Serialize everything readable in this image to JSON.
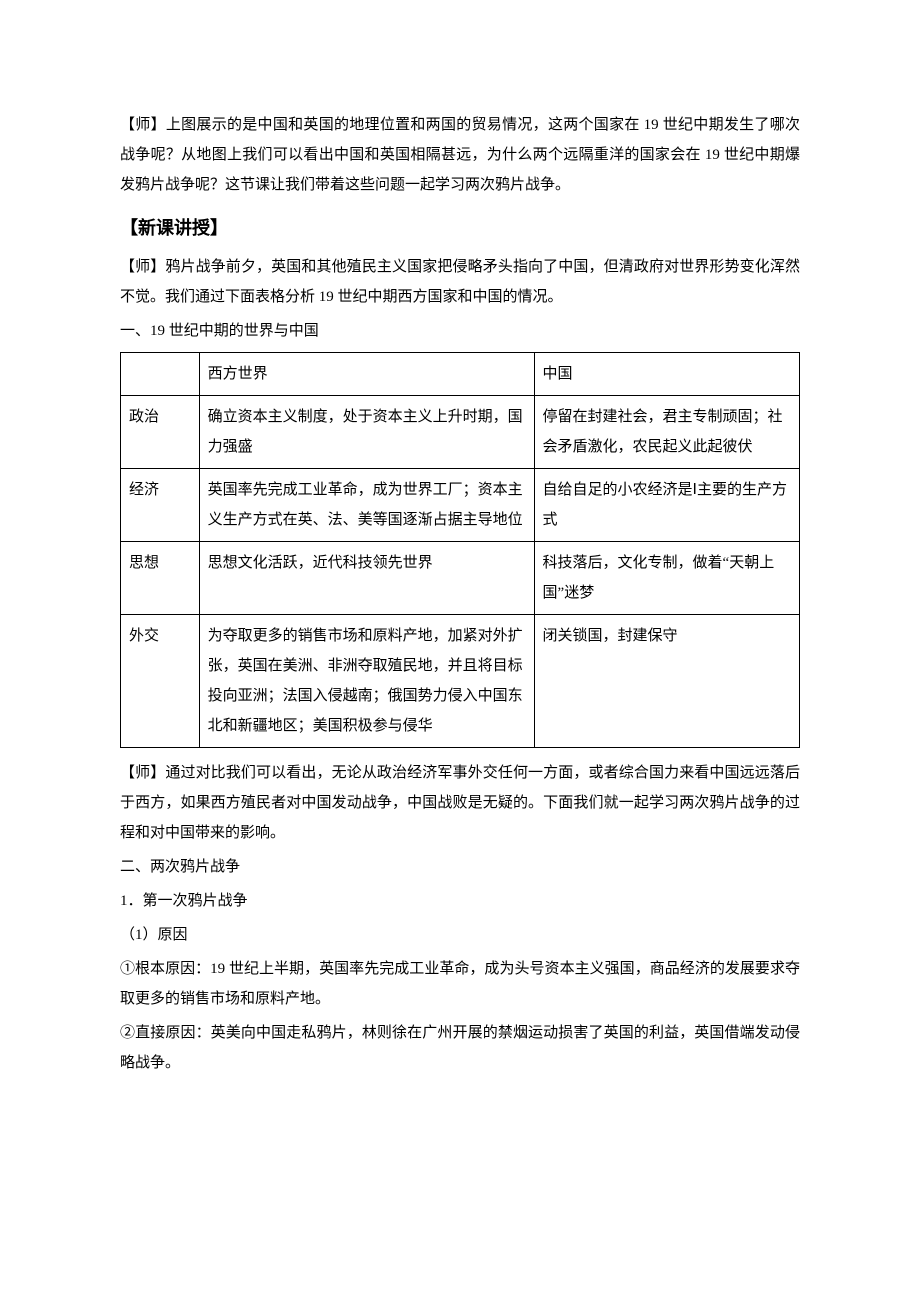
{
  "intro_para": "【师】上图展示的是中国和英国的地理位置和两国的贸易情况，这两个国家在 19 世纪中期发生了哪次战争呢？从地图上我们可以看出中国和英国相隔甚远，为什么两个远隔重洋的国家会在 19 世纪中期爆发鸦片战争呢？这节课让我们带着这些问题一起学习两次鸦片战争。",
  "section_heading": "【新课讲授】",
  "teacher_para_1": "【师】鸦片战争前夕，英国和其他殖民主义国家把侵略矛头指向了中国，但清政府对世界形势变化浑然不觉。我们通过下面表格分析 19 世纪中期西方国家和中国的情况。",
  "subheading_1": "一、19 世纪中期的世界与中国",
  "table": {
    "header": {
      "col_label": "",
      "west": "西方世界",
      "china": "中国"
    },
    "rows": [
      {
        "label": "政治",
        "west": "确立资本主义制度，处于资本主义上升时期，国力强盛",
        "china": "停留在封建社会，君主专制顽固；社会矛盾激化，农民起义此起彼伏"
      },
      {
        "label": "经济",
        "west": "英国率先完成工业革命，成为世界工厂；资本主义生产方式在英、法、美等国逐渐占据主导地位",
        "china": "自给自足的小农经济是Ⅰ主要的生产方式"
      },
      {
        "label": "思想",
        "west": "思想文化活跃，近代科技领先世界",
        "china": "科技落后，文化专制，做着“天朝上国”迷梦"
      },
      {
        "label": "外交",
        "west": "为夺取更多的销售市场和原料产地，加紧对外扩张，英国在美洲、非洲夺取殖民地，并且将目标投向亚洲；法国入侵越南；俄国势力侵入中国东北和新疆地区；美国积极参与侵华",
        "china": "闭关锁国，封建保守"
      }
    ]
  },
  "teacher_para_2": "【师】通过对比我们可以看出，无论从政治经济军事外交任何一方面，或者综合国力来看中国远远落后于西方，如果西方殖民者对中国发动战争，中国战败是无疑的。下面我们就一起学习两次鸦片战争的过程和对中国带来的影响。",
  "subheading_2": "二、两次鸦片战争",
  "item_1": "1．第一次鸦片战争",
  "item_1_1": "（1）原因",
  "item_1_1_a": "①根本原因：19 世纪上半期，英国率先完成工业革命，成为头号资本主义强国，商品经济的发展要求夺取更多的销售市场和原料产地。",
  "item_1_1_b": "②直接原因：英美向中国走私鸦片，林则徐在广州开展的禁烟运动损害了英国的利益，英国借端发动侵略战争。"
}
